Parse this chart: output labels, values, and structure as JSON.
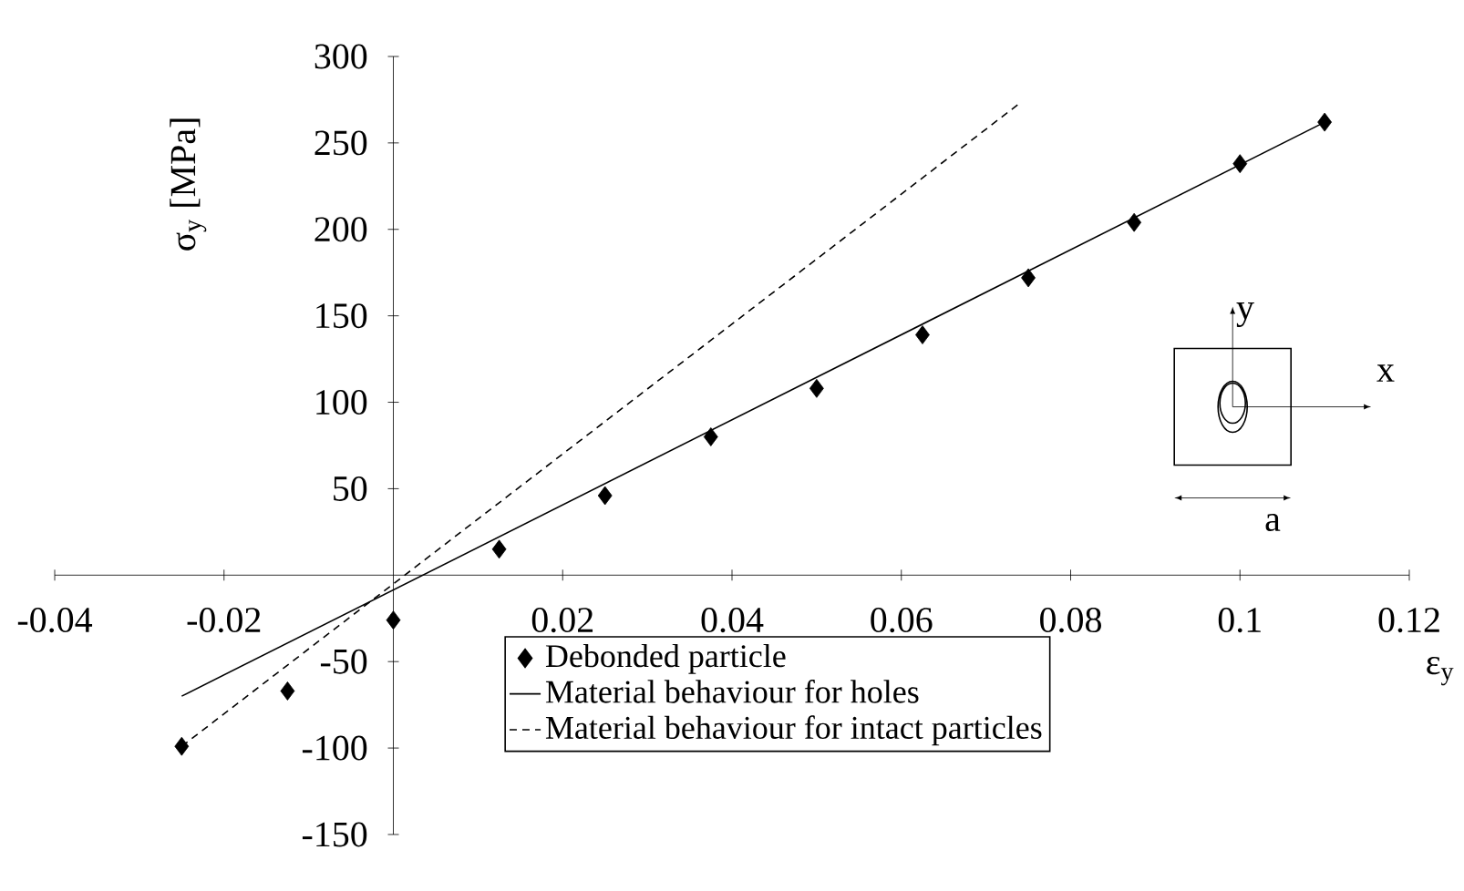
{
  "chart_data": {
    "type": "scatter",
    "xlabel": "ε$_{y}$",
    "ylabel": "σ$_{y}$ [MPa]",
    "xlim": [
      -0.04,
      0.12
    ],
    "ylim": [
      -150,
      300
    ],
    "xticks": [
      -0.04,
      -0.02,
      0.02,
      0.04,
      0.06,
      0.08,
      0.1,
      0.12
    ],
    "yticks": [
      -150,
      -100,
      -50,
      50,
      100,
      150,
      200,
      250,
      300
    ],
    "grid": false,
    "legend": "bottom right",
    "series": [
      {
        "name": "Debonded particle",
        "marker": "diamond",
        "color": "#000000",
        "x": [
          -0.025,
          -0.0125,
          0,
          0.0125,
          0.025,
          0.0375,
          0.05,
          0.0625,
          0.075,
          0.0875,
          0.1,
          0.11
        ],
        "values": [
          -99,
          -67,
          -26,
          15,
          46,
          80,
          108,
          139,
          172,
          204,
          238,
          262
        ]
      },
      {
        "name": "Material behaviour for holes",
        "type": "line",
        "line_style": "solid",
        "color": "#000000",
        "x": [
          -0.025,
          0.11
        ],
        "values": [
          -70,
          262
        ]
      },
      {
        "name": "Material behaviour for intact particles",
        "type": "line",
        "line_style": "dashed",
        "color": "#000000",
        "x": [
          -0.025,
          0.074
        ],
        "values": [
          -99,
          273
        ]
      }
    ],
    "annotations": [
      "y",
      "x",
      "a"
    ]
  }
}
